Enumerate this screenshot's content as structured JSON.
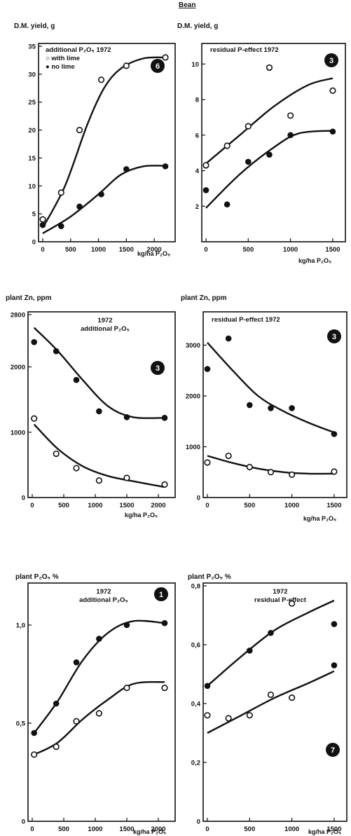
{
  "header": {
    "crop": "Bean"
  },
  "chart_data": [
    {
      "type": "line",
      "ylabel": "D.M. yield, g",
      "xlabel": "kg/ha P₂O₅",
      "annotations": [
        "additional P₂O₅  1972",
        "○ with lime",
        "● no lime"
      ],
      "badge": "6",
      "xlim": [
        0,
        2300
      ],
      "ylim": [
        0,
        35
      ],
      "xticks": [
        0,
        500,
        1000,
        1500,
        2000
      ],
      "yticks": [
        0,
        5,
        10,
        15,
        20,
        25,
        30,
        35
      ],
      "series": [
        {
          "name": "with lime",
          "marker": "open",
          "points": [
            [
              0,
              4
            ],
            [
              330,
              8.8
            ],
            [
              660,
              20
            ],
            [
              1050,
              29
            ],
            [
              1500,
              31.5
            ],
            [
              2200,
              33
            ]
          ],
          "curve": [
            [
              0,
              2.5
            ],
            [
              400,
              10
            ],
            [
              800,
              21
            ],
            [
              1100,
              27.5
            ],
            [
              1400,
              31
            ],
            [
              1800,
              32.8
            ],
            [
              2200,
              33
            ]
          ]
        },
        {
          "name": "no lime",
          "marker": "filled",
          "points": [
            [
              0,
              3
            ],
            [
              330,
              2.8
            ],
            [
              660,
              6.3
            ],
            [
              1050,
              8.5
            ],
            [
              1500,
              13
            ],
            [
              2200,
              13.5
            ]
          ],
          "curve": [
            [
              0,
              1.5
            ],
            [
              500,
              4.5
            ],
            [
              1000,
              8.5
            ],
            [
              1400,
              12
            ],
            [
              1800,
              13.5
            ],
            [
              2200,
              13.6
            ]
          ]
        }
      ]
    },
    {
      "type": "line",
      "ylabel": "D.M. yield, g",
      "xlabel": "kg/ha P₂O₅",
      "annotations": [
        "residual P-effect  1972"
      ],
      "badge": "3",
      "xlim": [
        0,
        1600
      ],
      "ylim": [
        0,
        11
      ],
      "xticks": [
        0,
        500,
        1000,
        1500
      ],
      "yticks": [
        2,
        4,
        6,
        8,
        10
      ],
      "series": [
        {
          "name": "with lime",
          "marker": "open",
          "points": [
            [
              0,
              4.3
            ],
            [
              250,
              5.4
            ],
            [
              500,
              6.5
            ],
            [
              750,
              9.8
            ],
            [
              1000,
              7.1
            ],
            [
              1500,
              8.5
            ]
          ],
          "curve": [
            [
              0,
              4.4
            ],
            [
              400,
              6
            ],
            [
              800,
              7.6
            ],
            [
              1200,
              8.8
            ],
            [
              1500,
              9.2
            ]
          ]
        },
        {
          "name": "no lime",
          "marker": "filled",
          "points": [
            [
              0,
              2.9
            ],
            [
              250,
              2.1
            ],
            [
              500,
              4.5
            ],
            [
              750,
              4.9
            ],
            [
              1000,
              6
            ],
            [
              1500,
              6.2
            ]
          ],
          "curve": [
            [
              0,
              1.9
            ],
            [
              400,
              3.8
            ],
            [
              800,
              5.3
            ],
            [
              1100,
              6.1
            ],
            [
              1500,
              6.25
            ]
          ]
        }
      ]
    },
    {
      "type": "line",
      "ylabel": "plant Zn, ppm",
      "xlabel": "kg/ha P₂O₅",
      "annotations": [
        "1972",
        "additional P₂O₅"
      ],
      "badge": "3",
      "xlim": [
        0,
        2200
      ],
      "ylim": [
        0,
        2800
      ],
      "xticks": [
        0,
        500,
        1000,
        1500,
        2000
      ],
      "yticks": [
        0,
        1000,
        2000,
        2800
      ],
      "series": [
        {
          "name": "no lime",
          "marker": "filled",
          "points": [
            [
              30,
              2380
            ],
            [
              380,
              2240
            ],
            [
              700,
              1800
            ],
            [
              1060,
              1320
            ],
            [
              1500,
              1230
            ],
            [
              2100,
              1220
            ]
          ],
          "curve": [
            [
              30,
              2600
            ],
            [
              400,
              2250
            ],
            [
              800,
              1800
            ],
            [
              1200,
              1400
            ],
            [
              1600,
              1230
            ],
            [
              2100,
              1220
            ]
          ]
        },
        {
          "name": "with lime",
          "marker": "open",
          "points": [
            [
              30,
              1210
            ],
            [
              380,
              670
            ],
            [
              700,
              450
            ],
            [
              1060,
              260
            ],
            [
              1500,
              300
            ],
            [
              2100,
              200
            ]
          ],
          "curve": [
            [
              30,
              1120
            ],
            [
              400,
              750
            ],
            [
              800,
              480
            ],
            [
              1200,
              330
            ],
            [
              1600,
              250
            ],
            [
              2100,
              160
            ]
          ]
        }
      ]
    },
    {
      "type": "line",
      "ylabel": "plant Zn, ppm",
      "xlabel": "kg/ha P₂O₅",
      "annotations": [
        "residual P-effect     1972"
      ],
      "badge": "3",
      "xlim": [
        0,
        1600
      ],
      "ylim": [
        0,
        3600
      ],
      "xticks": [
        0,
        500,
        1000,
        1500
      ],
      "yticks": [
        0,
        1000,
        2000,
        3000
      ],
      "series": [
        {
          "name": "no lime",
          "marker": "filled",
          "points": [
            [
              0,
              2530
            ],
            [
              250,
              3130
            ],
            [
              500,
              1820
            ],
            [
              750,
              1760
            ],
            [
              1000,
              1760
            ],
            [
              1500,
              1250
            ]
          ],
          "curve": [
            [
              0,
              3050
            ],
            [
              300,
              2500
            ],
            [
              600,
              2000
            ],
            [
              900,
              1700
            ],
            [
              1200,
              1470
            ],
            [
              1500,
              1280
            ]
          ]
        },
        {
          "name": "with lime",
          "marker": "open",
          "points": [
            [
              0,
              690
            ],
            [
              250,
              820
            ],
            [
              500,
              600
            ],
            [
              750,
              500
            ],
            [
              1000,
              450
            ],
            [
              1500,
              510
            ]
          ],
          "curve": [
            [
              0,
              820
            ],
            [
              300,
              680
            ],
            [
              600,
              570
            ],
            [
              900,
              500
            ],
            [
              1200,
              470
            ],
            [
              1500,
              470
            ]
          ]
        }
      ]
    },
    {
      "type": "line",
      "ylabel": "plant P₂O₅ %",
      "xlabel": "kg/ha P₂O₅",
      "annotations": [
        "1972",
        "additional P₂O₅"
      ],
      "badge": "1",
      "xlim": [
        0,
        2200
      ],
      "ylim": [
        0,
        1.2
      ],
      "xticks": [
        0,
        500,
        1000,
        1500,
        2000
      ],
      "yticks": [
        0,
        0.5,
        1.0
      ],
      "ytick_labels": [
        "0",
        "0,5",
        "1,0"
      ],
      "series": [
        {
          "name": "no lime",
          "marker": "filled",
          "points": [
            [
              30,
              0.45
            ],
            [
              380,
              0.6
            ],
            [
              700,
              0.81
            ],
            [
              1060,
              0.93
            ],
            [
              1500,
              1.0
            ],
            [
              2100,
              1.01
            ]
          ],
          "curve": [
            [
              30,
              0.45
            ],
            [
              400,
              0.61
            ],
            [
              800,
              0.82
            ],
            [
              1200,
              0.96
            ],
            [
              1600,
              1.02
            ],
            [
              2100,
              1.01
            ]
          ]
        },
        {
          "name": "with lime",
          "marker": "open",
          "points": [
            [
              30,
              0.34
            ],
            [
              380,
              0.38
            ],
            [
              700,
              0.51
            ],
            [
              1060,
              0.55
            ],
            [
              1500,
              0.68
            ],
            [
              2100,
              0.68
            ]
          ],
          "curve": [
            [
              30,
              0.34
            ],
            [
              400,
              0.4
            ],
            [
              800,
              0.52
            ],
            [
              1200,
              0.62
            ],
            [
              1600,
              0.7
            ],
            [
              2100,
              0.71
            ]
          ]
        }
      ]
    },
    {
      "type": "line",
      "ylabel": "plant P₂O₅ %",
      "xlabel": "kg/ha P₂O₅",
      "annotations": [
        "1972",
        "residual P-effect"
      ],
      "badge": "7",
      "xlim": [
        0,
        1600
      ],
      "ylim": [
        0,
        0.8
      ],
      "xticks": [
        0,
        500,
        1000,
        1500
      ],
      "yticks": [
        0,
        0.2,
        0.4,
        0.6,
        0.8
      ],
      "ytick_labels": [
        "0",
        "0,2",
        "0,4",
        "0,6",
        "0,8"
      ],
      "series": [
        {
          "name": "no lime",
          "marker": "filled",
          "points": [
            [
              0,
              0.46
            ],
            [
              500,
              0.58
            ],
            [
              750,
              0.64
            ],
            [
              1500,
              0.67
            ],
            [
              1500,
              0.53
            ]
          ],
          "curve": [
            [
              0,
              0.46
            ],
            [
              400,
              0.56
            ],
            [
              800,
              0.65
            ],
            [
              1200,
              0.71
            ],
            [
              1500,
              0.75
            ]
          ]
        },
        {
          "name": "with lime",
          "marker": "open",
          "points": [
            [
              0,
              0.36
            ],
            [
              250,
              0.35
            ],
            [
              500,
              0.36
            ],
            [
              750,
              0.43
            ],
            [
              1000,
              0.42
            ],
            [
              1000,
              0.74
            ]
          ],
          "curve": [
            [
              0,
              0.3
            ],
            [
              400,
              0.36
            ],
            [
              800,
              0.42
            ],
            [
              1200,
              0.47
            ],
            [
              1500,
              0.51
            ]
          ]
        }
      ]
    }
  ]
}
